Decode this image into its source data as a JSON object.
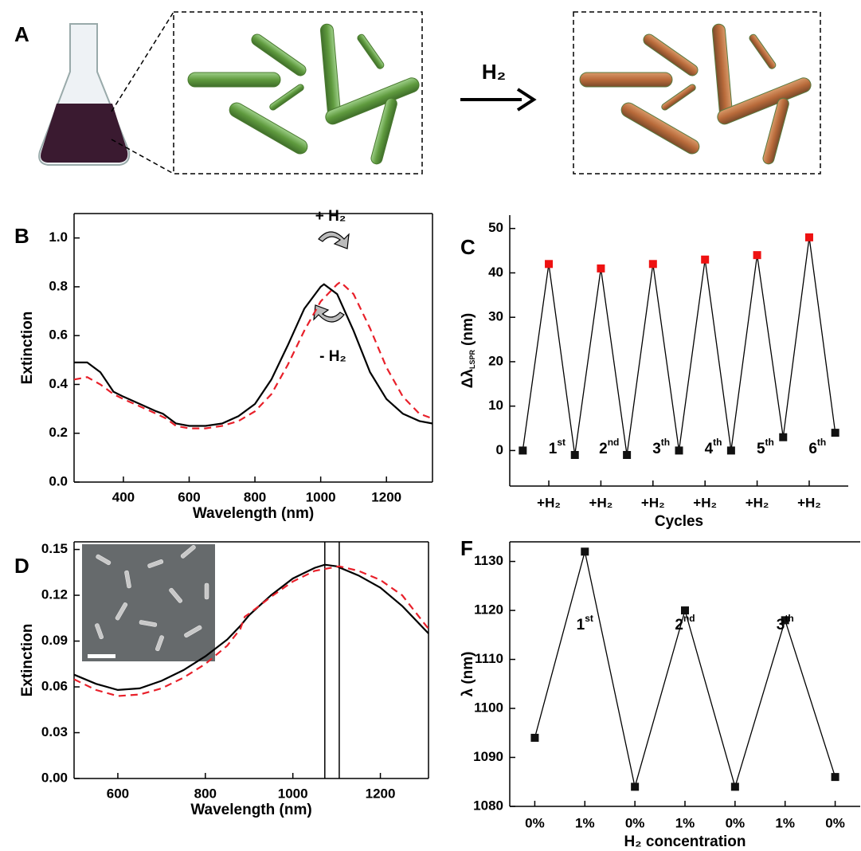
{
  "panel_a": {
    "label": "A",
    "arrow_label": "H₂"
  },
  "chart_data": [
    {
      "type": "line",
      "panel_label": "B",
      "xlabel": "Wavelength (nm)",
      "ylabel": "Extinction",
      "xlim": [
        250,
        1340
      ],
      "xticks": [
        400,
        600,
        800,
        1000,
        1200
      ],
      "ylim": [
        0,
        1.1
      ],
      "yticks": [
        {
          "value": 0,
          "label": "0.0"
        },
        0.2,
        0.4,
        0.6,
        0.8,
        {
          "value": 1,
          "label": "1.0"
        }
      ],
      "annotations": [
        "+ H₂",
        "- H₂"
      ],
      "series": [
        {
          "color": "#000000",
          "dash": false,
          "x": [
            250,
            290,
            330,
            370,
            400,
            450,
            500,
            520,
            560,
            600,
            650,
            700,
            750,
            800,
            850,
            900,
            950,
            1000,
            1010,
            1050,
            1100,
            1150,
            1200,
            1250,
            1300,
            1340
          ],
          "values": [
            0.49,
            0.49,
            0.45,
            0.37,
            0.35,
            0.32,
            0.29,
            0.28,
            0.24,
            0.23,
            0.23,
            0.24,
            0.27,
            0.32,
            0.42,
            0.56,
            0.71,
            0.8,
            0.81,
            0.77,
            0.62,
            0.45,
            0.34,
            0.28,
            0.25,
            0.24
          ]
        },
        {
          "color": "#e8202a",
          "dash": true,
          "x": [
            250,
            290,
            330,
            370,
            400,
            450,
            500,
            530,
            560,
            600,
            650,
            700,
            750,
            800,
            850,
            900,
            950,
            1000,
            1050,
            1060,
            1100,
            1150,
            1200,
            1250,
            1300,
            1340
          ],
          "values": [
            0.42,
            0.43,
            0.4,
            0.36,
            0.34,
            0.31,
            0.28,
            0.26,
            0.23,
            0.22,
            0.22,
            0.23,
            0.25,
            0.29,
            0.36,
            0.48,
            0.62,
            0.74,
            0.81,
            0.82,
            0.77,
            0.63,
            0.47,
            0.35,
            0.28,
            0.26
          ]
        }
      ]
    },
    {
      "type": "line",
      "panel_label": "C",
      "xlabel": "Cycles",
      "ylabel": {
        "main": "Δλ",
        "sub": "LSPR",
        "unit": "(nm)"
      },
      "categories": [
        null,
        "+H₂",
        null,
        "+H₂",
        null,
        "+H₂",
        null,
        "+H₂",
        null,
        "+H₂",
        null,
        "+H₂",
        null
      ],
      "ylim": [
        -8,
        53
      ],
      "yticks": [
        0,
        10,
        20,
        30,
        40,
        50
      ],
      "markers": true,
      "cycle_labels": [
        [
          "1",
          "st"
        ],
        [
          "2",
          "nd"
        ],
        [
          "3",
          "th"
        ],
        [
          "4",
          "th"
        ],
        [
          "5",
          "th"
        ],
        [
          "6",
          "th"
        ]
      ],
      "series": [
        {
          "color": "#000000",
          "values": [
            0,
            42,
            -1,
            41,
            -1,
            42,
            0,
            43,
            0,
            44,
            3,
            48,
            4
          ],
          "marker_colors": [
            "#111111",
            "#ee1111",
            "#111111",
            "#ee1111",
            "#111111",
            "#ee1111",
            "#111111",
            "#ee1111",
            "#111111",
            "#ee1111",
            "#111111",
            "#ee1111",
            "#111111"
          ]
        }
      ]
    },
    {
      "type": "line",
      "panel_label": "D",
      "xlabel": "Wavelength (nm)",
      "ylabel": "Extinction",
      "xlim": [
        500,
        1310
      ],
      "xticks": [
        600,
        800,
        1000,
        1200
      ],
      "ylim": [
        0,
        0.155
      ],
      "yticks": [
        {
          "value": 0,
          "label": "0.00"
        },
        0.03,
        0.06,
        0.09,
        0.12,
        0.15
      ],
      "vlines": [
        1073,
        1106
      ],
      "series": [
        {
          "color": "#000000",
          "dash": false,
          "x": [
            500,
            550,
            600,
            650,
            700,
            750,
            800,
            850,
            880,
            900,
            950,
            1000,
            1050,
            1073,
            1100,
            1150,
            1200,
            1250,
            1310
          ],
          "values": [
            0.068,
            0.062,
            0.058,
            0.059,
            0.064,
            0.071,
            0.08,
            0.091,
            0.1,
            0.107,
            0.12,
            0.131,
            0.138,
            0.14,
            0.139,
            0.133,
            0.125,
            0.113,
            0.095
          ]
        },
        {
          "color": "#e8202a",
          "dash": true,
          "x": [
            500,
            550,
            600,
            650,
            700,
            750,
            800,
            850,
            880,
            890,
            900,
            950,
            1000,
            1050,
            1106,
            1150,
            1200,
            1250,
            1310
          ],
          "values": [
            0.065,
            0.058,
            0.054,
            0.055,
            0.059,
            0.066,
            0.075,
            0.087,
            0.098,
            0.106,
            0.108,
            0.119,
            0.129,
            0.136,
            0.139,
            0.136,
            0.13,
            0.12,
            0.098
          ]
        }
      ]
    },
    {
      "type": "line",
      "panel_label": "F",
      "xlabel": "H₂ concentration",
      "ylabel": "λ (nm)",
      "categories": [
        "0%",
        "1%",
        "0%",
        "1%",
        "0%",
        "1%",
        "0%"
      ],
      "ylim": [
        1080,
        1134
      ],
      "yticks": [
        1080,
        1090,
        1100,
        1110,
        1120,
        1130
      ],
      "markers": true,
      "cycle_labels": [
        [
          "1",
          "st"
        ],
        [
          "2",
          "nd"
        ],
        [
          "3",
          "th"
        ]
      ],
      "series": [
        {
          "color": "#000000",
          "values": [
            1094,
            1132,
            1084,
            1120,
            1084,
            1118,
            1086
          ],
          "marker_colors": [
            "#111111",
            "#111111",
            "#111111",
            "#111111",
            "#111111",
            "#111111",
            "#111111"
          ]
        }
      ]
    }
  ]
}
